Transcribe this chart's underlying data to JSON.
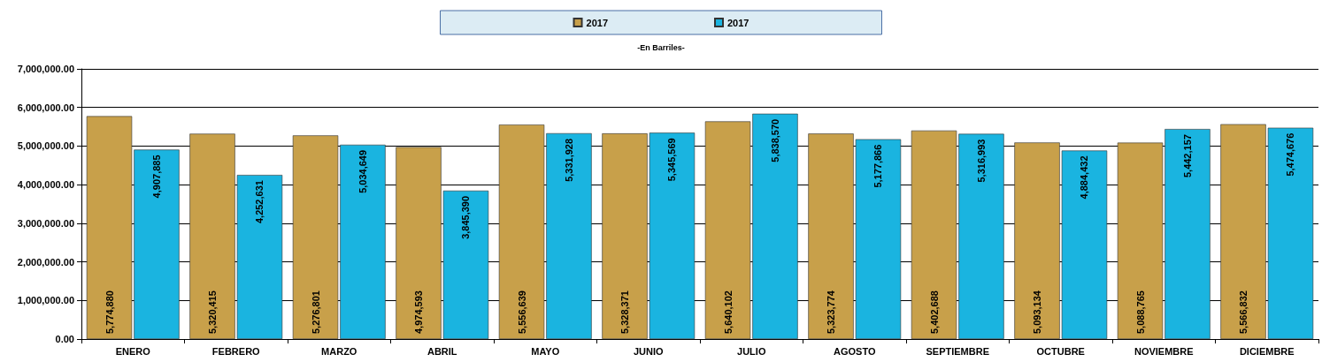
{
  "chart_data": {
    "type": "bar",
    "subtitle": "-En Barriles-",
    "categories": [
      "ENERO",
      "FEBRERO",
      "MARZO",
      "ABRIL",
      "MAYO",
      "JUNIO",
      "JULIO",
      "AGOSTO",
      "SEPTIEMBRE",
      "OCTUBRE",
      "NOVIEMBRE",
      "DICIEMBRE"
    ],
    "series": [
      {
        "name": "2017",
        "color": "#c8a04a",
        "values": [
          5774880,
          5320415,
          5276801,
          4974593,
          5556639,
          5328371,
          5640102,
          5323774,
          5402688,
          5093134,
          5088765,
          5566832
        ],
        "value_labels": [
          "5,774,880",
          "5,320,415",
          "5,276,801",
          "4,974,593",
          "5,556,639",
          "5,328,371",
          "5,640,102",
          "5,323,774",
          "5,402,688",
          "5,093,134",
          "5,088,765",
          "5,566,832"
        ]
      },
      {
        "name": "2017",
        "color": "#1ab4e0",
        "values": [
          4907885,
          4252631,
          5034649,
          3845390,
          5331928,
          5345569,
          5838570,
          5177866,
          5316993,
          4884432,
          5442157,
          5474676
        ],
        "value_labels": [
          "4,907,885",
          "4,252,631",
          "5,034,649",
          "3,845,390",
          "5,331,928",
          "5,345,569",
          "5,838,570",
          "5,177,866",
          "5,316,993",
          "4,884,432",
          "5,442,157",
          "5,474,676"
        ]
      }
    ],
    "ylim": [
      0,
      7000000
    ],
    "yticks": [
      {
        "value": 0,
        "label": "0.00"
      },
      {
        "value": 1000000,
        "label": "1,000,000.00"
      },
      {
        "value": 2000000,
        "label": "2,000,000.00"
      },
      {
        "value": 3000000,
        "label": "3,000,000.00"
      },
      {
        "value": 4000000,
        "label": "4,000,000.00"
      },
      {
        "value": 5000000,
        "label": "5,000,000.00"
      },
      {
        "value": 6000000,
        "label": "6,000,000.00"
      },
      {
        "value": 7000000,
        "label": "7,000,000.00"
      }
    ],
    "grid": "y",
    "legend": "top"
  }
}
